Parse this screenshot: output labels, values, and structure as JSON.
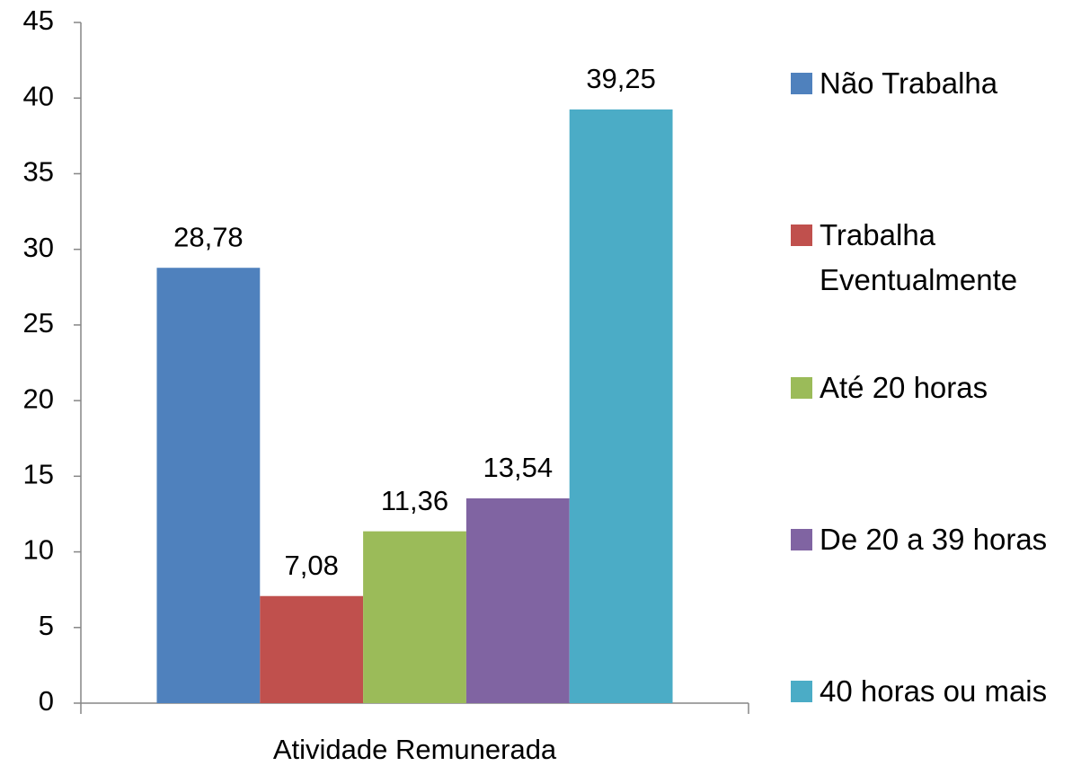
{
  "chart_data": {
    "type": "bar",
    "categories": [
      "Atividade Remunerada"
    ],
    "series": [
      {
        "name": "Não Trabalha",
        "color": "#4f81bd",
        "values": [
          28.78
        ],
        "value_labels": [
          "28,78"
        ]
      },
      {
        "name": "Trabalha Eventualmente",
        "color": "#c0504d",
        "values": [
          7.08
        ],
        "value_labels": [
          "7,08"
        ]
      },
      {
        "name": "Até 20 horas",
        "color": "#9bbb59",
        "values": [
          11.36
        ],
        "value_labels": [
          "11,36"
        ]
      },
      {
        "name": "De 20 a 39 horas",
        "color": "#8064a2",
        "values": [
          13.54
        ],
        "value_labels": [
          "13,54"
        ]
      },
      {
        "name": "40 horas ou mais",
        "color": "#4bacc6",
        "values": [
          39.25
        ],
        "value_labels": [
          "39,25"
        ]
      }
    ],
    "ylim": [
      0,
      45
    ],
    "yticks": [
      0,
      5,
      10,
      15,
      20,
      25,
      30,
      35,
      40,
      45
    ],
    "grid": false,
    "legend": "right"
  }
}
